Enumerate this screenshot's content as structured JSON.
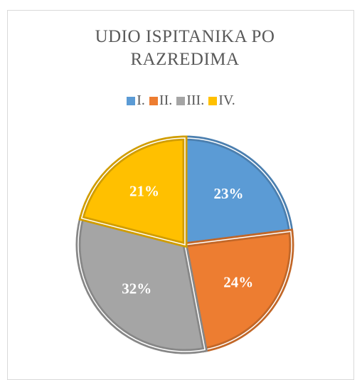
{
  "chart_data": {
    "type": "pie",
    "title": "UDIO ISPITANIKA PO RAZREDIMA",
    "categories": [
      "I.",
      "II.",
      "III.",
      "IV."
    ],
    "values": [
      23,
      24,
      32,
      21
    ],
    "value_labels": [
      "23%",
      "24%",
      "32%",
      "21%"
    ],
    "colors": [
      "#5b9bd5",
      "#ed7d31",
      "#a5a5a5",
      "#ffc000"
    ],
    "legend": "top"
  }
}
